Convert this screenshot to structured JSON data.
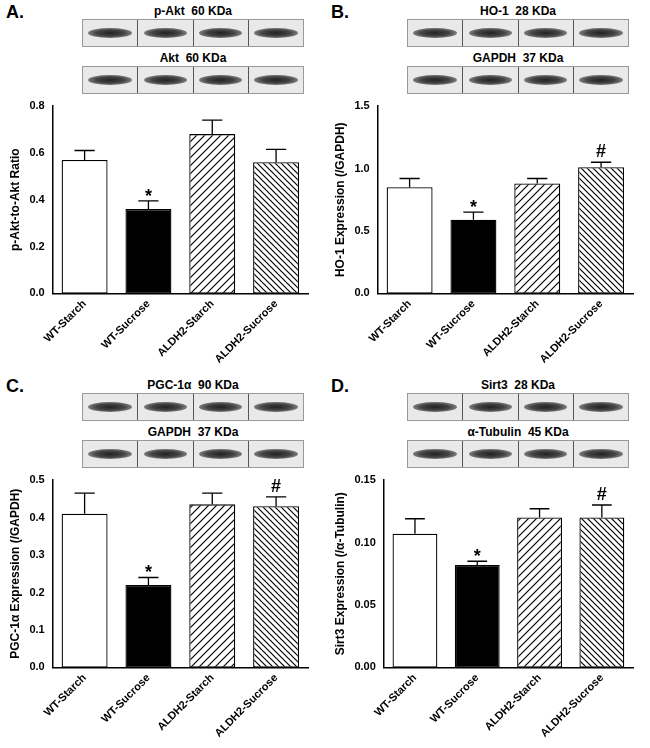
{
  "chart_data": [
    {
      "type": "bar",
      "panel": "A.",
      "blots": [
        {
          "protein": "p-Akt",
          "size": "60 KDa"
        },
        {
          "protein": "Akt",
          "size": "60 KDa"
        }
      ],
      "categories": [
        "WT-Starch",
        "WT-Sucrose",
        "ALDH2-Starch",
        "ALDH2-Sucrose"
      ],
      "values": [
        0.57,
        0.36,
        0.68,
        0.56
      ],
      "errors": [
        0.04,
        0.035,
        0.06,
        0.055
      ],
      "colors": [
        "#ffffff",
        "#000000",
        "#ffffff",
        "#ffffff"
      ],
      "ylabel": "p-Akt-to-Akt Ratio",
      "ylim": [
        0,
        0.8
      ],
      "yticks": [
        {
          "value": 0,
          "label": "0.0"
        },
        0.2,
        0.4,
        0.6,
        0.8
      ],
      "grid": false,
      "annotations": [
        {
          "category": "WT-Sucrose",
          "text": "*"
        }
      ]
    },
    {
      "type": "bar",
      "panel": "B.",
      "blots": [
        {
          "protein": "HO-1",
          "size": "28 KDa"
        },
        {
          "protein": "GAPDH",
          "size": "37 KDa"
        }
      ],
      "categories": [
        "WT-Starch",
        "WT-Sucrose",
        "ALDH2-Starch",
        "ALDH2-Sucrose"
      ],
      "values": [
        0.85,
        0.59,
        0.88,
        1.01
      ],
      "errors": [
        0.07,
        0.06,
        0.04,
        0.04
      ],
      "colors": [
        "#ffffff",
        "#000000",
        "#ffffff",
        "#ffffff"
      ],
      "ylabel": "HO-1 Expression (/GAPDH)",
      "ylim": [
        0,
        1.5
      ],
      "yticks": [
        {
          "value": 0,
          "label": "0.0"
        },
        0.5,
        {
          "value": 1,
          "label": "1.0"
        },
        1.5
      ],
      "grid": false,
      "annotations": [
        {
          "category": "WT-Sucrose",
          "text": "*"
        },
        {
          "category": "ALDH2-Sucrose",
          "text": "#"
        }
      ]
    },
    {
      "type": "bar",
      "panel": "C.",
      "blots": [
        {
          "protein": "PGC-1α",
          "size": "90 KDa"
        },
        {
          "protein": "GAPDH",
          "size": "37 KDa"
        }
      ],
      "categories": [
        "WT-Starch",
        "WT-Sucrose",
        "ALDH2-Starch",
        "ALDH2-Sucrose"
      ],
      "values": [
        0.41,
        0.22,
        0.435,
        0.43
      ],
      "errors": [
        0.055,
        0.02,
        0.03,
        0.025
      ],
      "colors": [
        "#ffffff",
        "#000000",
        "#ffffff",
        "#ffffff"
      ],
      "ylabel": "PGC-1α Expression (/GAPDH)",
      "ylim": [
        0,
        0.5
      ],
      "yticks": [
        {
          "value": 0,
          "label": "0.0"
        },
        0.1,
        0.2,
        0.3,
        0.4,
        0.5
      ],
      "grid": false,
      "annotations": [
        {
          "category": "WT-Sucrose",
          "text": "*"
        },
        {
          "category": "ALDH2-Sucrose",
          "text": "#"
        }
      ]
    },
    {
      "type": "bar",
      "panel": "D.",
      "blots": [
        {
          "protein": "Sirt3",
          "size": "28 KDa"
        },
        {
          "protein": "α-Tubulin",
          "size": "45 KDa"
        }
      ],
      "categories": [
        "WT-Starch",
        "WT-Sucrose",
        "ALDH2-Starch",
        "ALDH2-Sucrose"
      ],
      "values": [
        0.107,
        0.082,
        0.12,
        0.12
      ],
      "errors": [
        0.012,
        0.003,
        0.007,
        0.01
      ],
      "colors": [
        "#ffffff",
        "#000000",
        "#ffffff",
        "#ffffff"
      ],
      "ylabel": "Sirt3 Expression (/α-Tubulin)",
      "ylim": [
        0,
        0.15
      ],
      "yticks": [
        {
          "value": 0,
          "label": "0.00"
        },
        {
          "value": 0.05,
          "label": "0.05"
        },
        {
          "value": 0.1,
          "label": "0.10"
        },
        0.15
      ],
      "grid": false,
      "annotations": [
        {
          "category": "WT-Sucrose",
          "text": "*"
        },
        {
          "category": "ALDH2-Sucrose",
          "text": "#"
        }
      ]
    }
  ]
}
